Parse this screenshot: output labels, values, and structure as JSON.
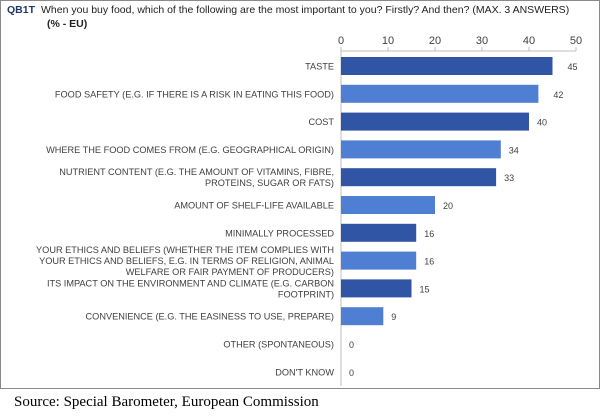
{
  "header": {
    "code": "QB1T",
    "question": "When you buy food, which of the following are the most important to you? Firstly? And then? (MAX. 3 ANSWERS)",
    "unit": "(% - EU)"
  },
  "source": "Source: Special Barometer, European Commission",
  "colors": {
    "dark_bar": "#2f55a4",
    "light_bar": "#4f7fd3",
    "axis": "#bfbfbf",
    "text": "#404040"
  },
  "chart_data": {
    "type": "bar",
    "orientation": "horizontal",
    "categories": [
      [
        "TASTE"
      ],
      [
        "FOOD SAFETY (E.G. IF THERE IS A RISK IN EATING THIS FOOD)"
      ],
      [
        "COST"
      ],
      [
        "WHERE THE FOOD COMES FROM (E.G. GEOGRAPHICAL ORIGIN)"
      ],
      [
        "NUTRIENT CONTENT (E.G. THE AMOUNT OF VITAMINS, FIBRE,",
        "PROTEINS, SUGAR OR FATS)"
      ],
      [
        "AMOUNT OF SHELF-LIFE AVAILABLE"
      ],
      [
        "MINIMALLY PROCESSED"
      ],
      [
        "YOUR ETHICS AND BELIEFS (WHETHER THE ITEM COMPLIES WITH",
        "YOUR ETHICS AND BELIEFS, E.G. IN TERMS OF RELIGION, ANIMAL",
        "WELFARE OR FAIR PAYMENT OF PRODUCERS)"
      ],
      [
        "ITS IMPACT ON THE ENVIRONMENT AND CLIMATE (E.G. CARBON",
        "FOOTPRINT)"
      ],
      [
        "CONVENIENCE (E.G. THE EASINESS TO USE, PREPARE)"
      ],
      [
        "OTHER (SPONTANEOUS)"
      ],
      [
        "DON'T KNOW"
      ]
    ],
    "values": [
      45,
      42,
      40,
      34,
      33,
      20,
      16,
      16,
      15,
      9,
      0,
      0
    ],
    "shade": [
      "dark",
      "light",
      "dark",
      "light",
      "dark",
      "light",
      "dark",
      "light",
      "dark",
      "light",
      "dark",
      "light"
    ],
    "x_ticks": [
      0,
      10,
      20,
      30,
      40,
      50
    ],
    "xlim": [
      0,
      50
    ],
    "grid": false,
    "legend": "none"
  }
}
